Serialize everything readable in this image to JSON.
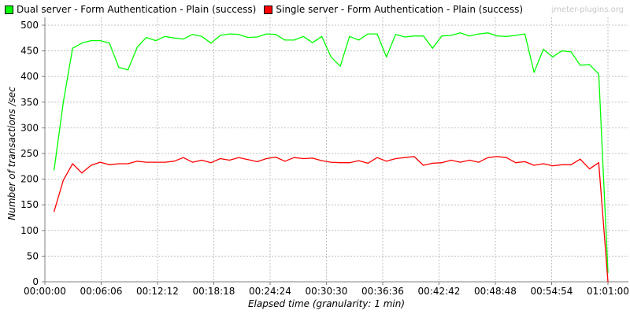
{
  "watermark": "jmeter-plugins.org",
  "chart_data": {
    "type": "line",
    "title": "",
    "xlabel": "Elapsed time (granularity: 1 min)",
    "ylabel": "Number of transactions /sec",
    "ylim": [
      0,
      500
    ],
    "xlim": [
      0,
      61
    ],
    "yticks": [
      "0",
      "50",
      "100",
      "150",
      "200",
      "250",
      "300",
      "350",
      "400",
      "450",
      "500"
    ],
    "xticks": [
      "00:00:00",
      "00:06:06",
      "00:12:12",
      "00:18:18",
      "00:24:24",
      "00:30:30",
      "00:36:36",
      "00:42:42",
      "00:48:48",
      "00:54:54",
      "01:01:00"
    ],
    "grid": true,
    "legend_position": "top-left",
    "x": [
      1,
      2,
      3,
      4,
      5,
      6,
      7,
      8,
      9,
      10,
      11,
      12,
      13,
      14,
      15,
      16,
      17,
      18,
      19,
      20,
      21,
      22,
      23,
      24,
      25,
      26,
      27,
      28,
      29,
      30,
      31,
      32,
      33,
      34,
      35,
      36,
      37,
      38,
      39,
      40,
      41,
      42,
      43,
      44,
      45,
      46,
      47,
      48,
      49,
      50,
      51,
      52,
      53,
      54,
      55,
      56,
      57,
      58,
      59,
      60,
      61
    ],
    "series": [
      {
        "name": "Dual server - Form Authentication - Plain (success)",
        "color": "#00ff00",
        "values": [
          218,
          350,
          455,
          465,
          470,
          470,
          465,
          418,
          413,
          457,
          476,
          470,
          478,
          475,
          473,
          482,
          478,
          465,
          480,
          483,
          482,
          476,
          477,
          483,
          482,
          471,
          471,
          478,
          466,
          478,
          438,
          420,
          478,
          471,
          483,
          483,
          438,
          482,
          477,
          479,
          479,
          455,
          479,
          480,
          485,
          479,
          483,
          485,
          479,
          478,
          480,
          483,
          408,
          453,
          438,
          450,
          448,
          422,
          423,
          405,
          18
        ]
      },
      {
        "name": "Single server - Form Authentication - Plain (success)",
        "color": "#ff0000",
        "values": [
          137,
          198,
          230,
          212,
          227,
          233,
          228,
          230,
          230,
          235,
          233,
          233,
          233,
          235,
          242,
          233,
          237,
          232,
          240,
          237,
          242,
          238,
          234,
          240,
          243,
          235,
          242,
          240,
          241,
          236,
          233,
          232,
          232,
          236,
          231,
          242,
          235,
          240,
          242,
          244,
          227,
          231,
          232,
          237,
          233,
          237,
          233,
          242,
          244,
          242,
          232,
          234,
          227,
          230,
          226,
          228,
          228,
          239,
          220,
          232,
          0
        ]
      }
    ]
  }
}
